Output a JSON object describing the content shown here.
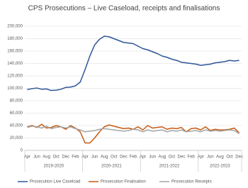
{
  "chart_data": {
    "type": "line",
    "title": "CPS Prosecutions – Live Caseload, receipts and finalisations",
    "categories": [
      "Apr",
      null,
      "Jun",
      null,
      "Aug",
      null,
      "Oct",
      null,
      "Dec",
      null,
      "Feb",
      null,
      "Apr",
      null,
      "Jun",
      null,
      "Aug",
      null,
      "Oct",
      null,
      "Dec",
      null,
      "Feb",
      null,
      "Apr",
      null,
      "Jun",
      null,
      "Aug",
      null,
      "Oct",
      null,
      "Dec",
      null,
      "Feb",
      null,
      "Apr",
      null,
      "Jun",
      null,
      "Aug",
      null,
      "Oct",
      null,
      "Dec"
    ],
    "category_groups": [
      "2019-2020",
      "2020-2021",
      "2021-2022",
      "2022-2023"
    ],
    "series": [
      {
        "name": "Prosecution Live Caseload",
        "color": "#2e5597",
        "values": [
          98000,
          99500,
          100500,
          98500,
          99000,
          96500,
          97000,
          98500,
          101500,
          102000,
          104000,
          110000,
          130000,
          152000,
          170000,
          179000,
          184000,
          183000,
          180000,
          177000,
          174000,
          173000,
          172000,
          168000,
          164000,
          162000,
          159000,
          156000,
          152000,
          150000,
          147000,
          145000,
          142000,
          141000,
          140000,
          139000,
          137000,
          138000,
          139000,
          141000,
          142000,
          143000,
          145000,
          144000,
          145000
        ]
      },
      {
        "name": "Prosecution Finalisation",
        "color": "#c55a11",
        "values": [
          38000,
          40000,
          37000,
          42000,
          36000,
          37000,
          40000,
          38000,
          34000,
          40000,
          36000,
          30000,
          12000,
          12000,
          20000,
          30000,
          38000,
          41000,
          39000,
          37000,
          35000,
          36000,
          34000,
          38000,
          33000,
          40000,
          36000,
          37000,
          38000,
          34000,
          36000,
          35000,
          37000,
          30000,
          35000,
          36000,
          33000,
          38000,
          32000,
          34000,
          33000,
          33000,
          34000,
          36000,
          28000
        ]
      },
      {
        "name": "Prosecution Receipts",
        "color": "#a5a5a5",
        "values": [
          37000,
          39000,
          38000,
          36000,
          39000,
          35000,
          37000,
          38000,
          36000,
          38000,
          35000,
          33000,
          30000,
          31000,
          32000,
          34000,
          35000,
          34000,
          33000,
          32000,
          31000,
          32000,
          34000,
          33000,
          30000,
          33000,
          31000,
          32000,
          33000,
          30000,
          32000,
          31000,
          33000,
          30000,
          31000,
          32000,
          30000,
          33000,
          31000,
          32000,
          31000,
          32000,
          33000,
          32000,
          27000
        ]
      }
    ],
    "ylim": [
      0,
      200000
    ],
    "yticks": [
      0,
      {
        "value": 20000,
        "label": "20,000"
      },
      {
        "value": 40000,
        "label": "40,000"
      },
      {
        "value": 60000,
        "label": "60,000"
      },
      {
        "value": 80000,
        "label": "80,000"
      },
      {
        "value": 100000,
        "label": "100,000"
      },
      {
        "value": 120000,
        "label": "120,000"
      },
      {
        "value": 140000,
        "label": "140,000"
      },
      {
        "value": 160000,
        "label": "160,000"
      },
      {
        "value": 180000,
        "label": "180,000"
      },
      {
        "value": 200000,
        "label": "200,000"
      }
    ],
    "grid": true,
    "legend": "bottom"
  }
}
